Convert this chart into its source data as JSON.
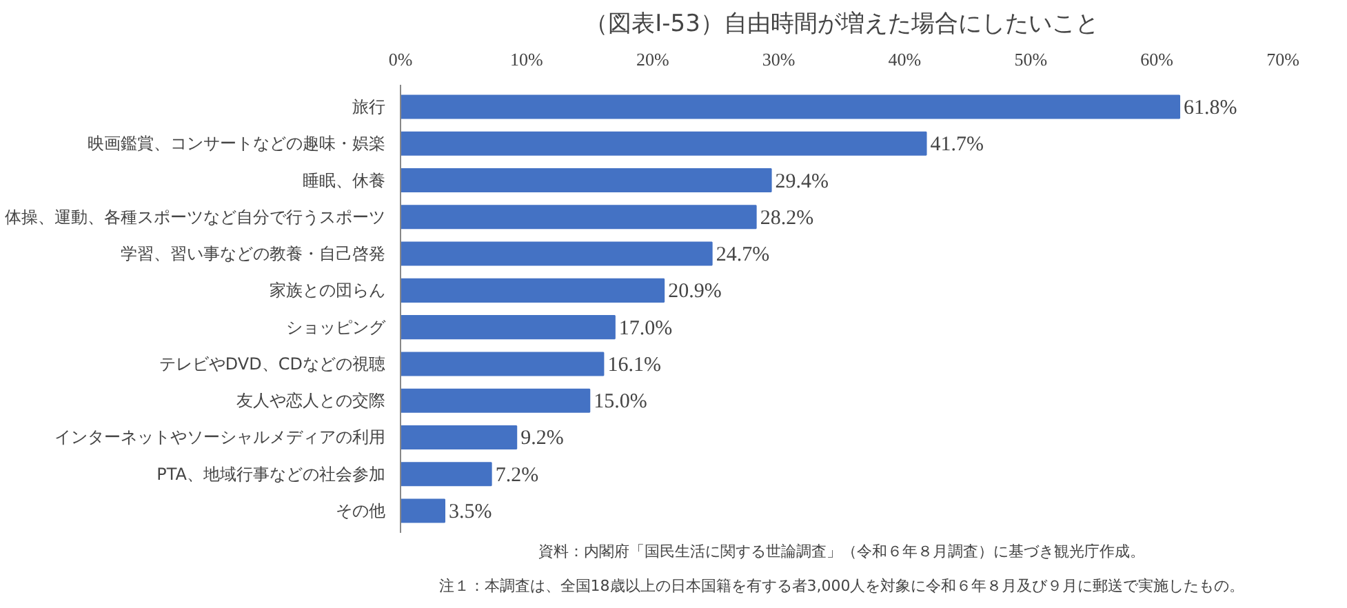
{
  "chart_data": {
    "type": "bar",
    "orientation": "horizontal",
    "title": "（図表Ⅰ-53）自由時間が増えた場合にしたいこと",
    "categories": [
      "旅行",
      "映画鑑賞、コンサートなどの趣味・娯楽",
      "睡眠、休養",
      "体操、運動、各種スポーツなど自分で行うスポーツ",
      "学習、習い事などの教養・自己啓発",
      "家族との団らん",
      "ショッピング",
      "テレビやDVD、CDなどの視聴",
      "友人や恋人との交際",
      "インターネットやソーシャルメディアの利用",
      "PTA、地域行事などの社会参加",
      "その他"
    ],
    "values": [
      61.8,
      41.7,
      29.4,
      28.2,
      24.7,
      20.9,
      17.0,
      16.1,
      15.0,
      9.2,
      7.2,
      3.5
    ],
    "value_labels": [
      "61.8%",
      "41.7%",
      "29.4%",
      "28.2%",
      "24.7%",
      "20.9%",
      "17.0%",
      "16.1%",
      "15.0%",
      "9.2%",
      "7.2%",
      "3.5%"
    ],
    "color": "#4472c4",
    "xlim": [
      0,
      70
    ],
    "xticks": [
      {
        "value": 0,
        "label": "0%"
      },
      {
        "value": 10,
        "label": "10%"
      },
      {
        "value": 20,
        "label": "20%"
      },
      {
        "value": 30,
        "label": "30%"
      },
      {
        "value": 40,
        "label": "40%"
      },
      {
        "value": 50,
        "label": "50%"
      },
      {
        "value": 60,
        "label": "60%"
      },
      {
        "value": 70,
        "label": "70%"
      }
    ],
    "grid": false,
    "annotations": [
      "資料：内閣府「国民生活に関する世論調査」（令和６年８月調査）に基づき観光庁作成。",
      "注１：本調査は、全国18歳以上の日本国籍を有する者3,000人を対象に令和６年８月及び９月に郵送で実施したもの。"
    ]
  }
}
